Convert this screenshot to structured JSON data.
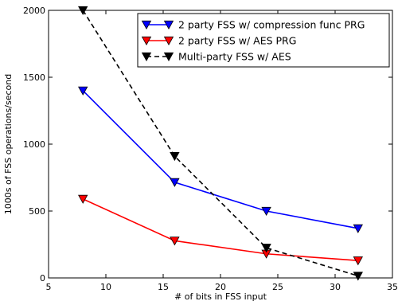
{
  "chart_data": {
    "type": "line",
    "title": "",
    "xlabel": "# of bits in FSS input",
    "ylabel": "1000s of FSS operations/second",
    "xlim": [
      5,
      35
    ],
    "ylim": [
      0,
      2000
    ],
    "xticks": [
      5,
      10,
      15,
      20,
      25,
      30,
      35
    ],
    "yticks": [
      0,
      500,
      1000,
      1500,
      2000
    ],
    "grid": false,
    "legend_position": "top-right",
    "series": [
      {
        "name": "2 party FSS w/ compression func PRG",
        "color": "#0000ff",
        "line_style": "solid",
        "marker": "triangle-down",
        "x": [
          8,
          16,
          24,
          32
        ],
        "y": [
          1400,
          715,
          500,
          370
        ]
      },
      {
        "name": "2 party FSS w/ AES PRG",
        "color": "#ff0000",
        "line_style": "solid",
        "marker": "triangle-down",
        "x": [
          8,
          16,
          24,
          32
        ],
        "y": [
          590,
          278,
          180,
          130
        ]
      },
      {
        "name": "Multi-party FSS w/ AES",
        "color": "#000000",
        "line_style": "dashed",
        "marker": "triangle-down",
        "x": [
          8,
          16,
          24,
          32
        ],
        "y": [
          2000,
          910,
          225,
          15
        ]
      }
    ]
  }
}
